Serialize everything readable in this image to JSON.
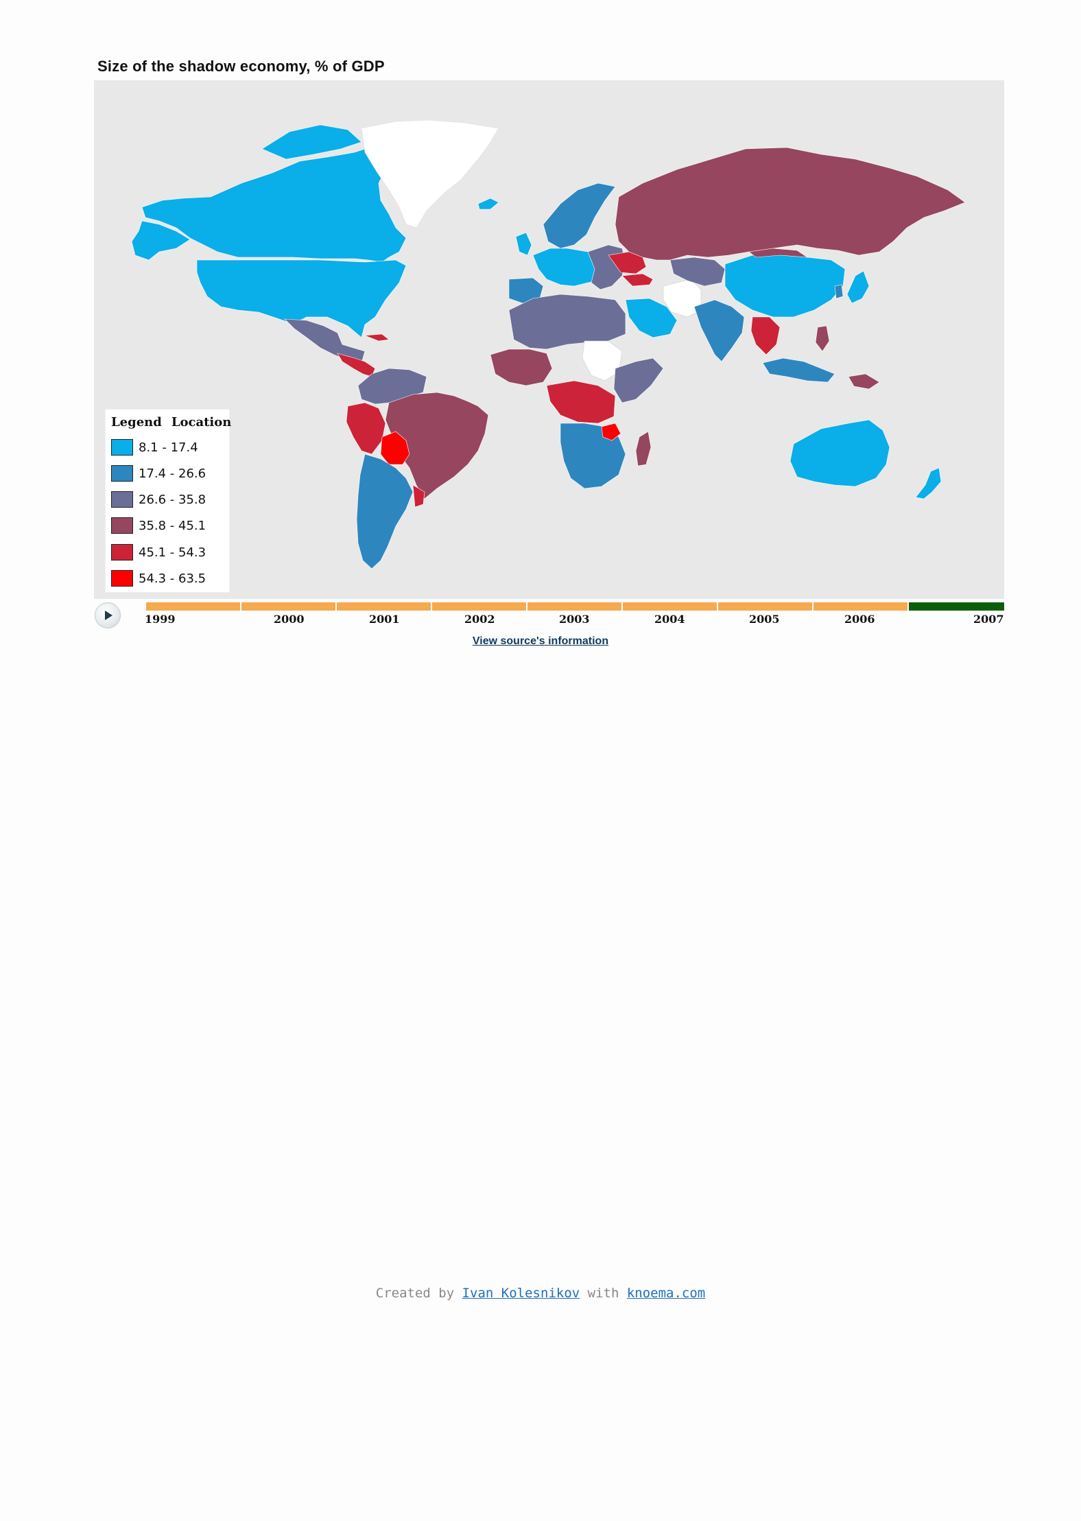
{
  "title": "Size of the shadow economy, % of GDP",
  "legend": {
    "header": [
      "Legend",
      "Location"
    ],
    "items": [
      {
        "label": "8.1 - 17.4",
        "color": "#0aaee8"
      },
      {
        "label": "17.4 - 26.6",
        "color": "#2e86bf"
      },
      {
        "label": "26.6 - 35.8",
        "color": "#6b6e96"
      },
      {
        "label": "35.8 - 45.1",
        "color": "#96465f"
      },
      {
        "label": "45.1 - 54.3",
        "color": "#cc2338"
      },
      {
        "label": "54.3 - 63.5",
        "color": "#fd0000"
      }
    ]
  },
  "timeline": {
    "years": [
      "1999",
      "2000",
      "2001",
      "2002",
      "2003",
      "2004",
      "2005",
      "2006",
      "2007"
    ],
    "selected": "2007",
    "active_color": "#0b5e0b",
    "inactive_color": "#f6a94e"
  },
  "source_link": "View source's information",
  "credit": {
    "prefix": "Created by ",
    "author": "Ivan Kolesnikov",
    "middle": " with ",
    "site": "knoema.com"
  },
  "map_background": "#e8e8e8",
  "no_data_color": "#ffffff"
}
